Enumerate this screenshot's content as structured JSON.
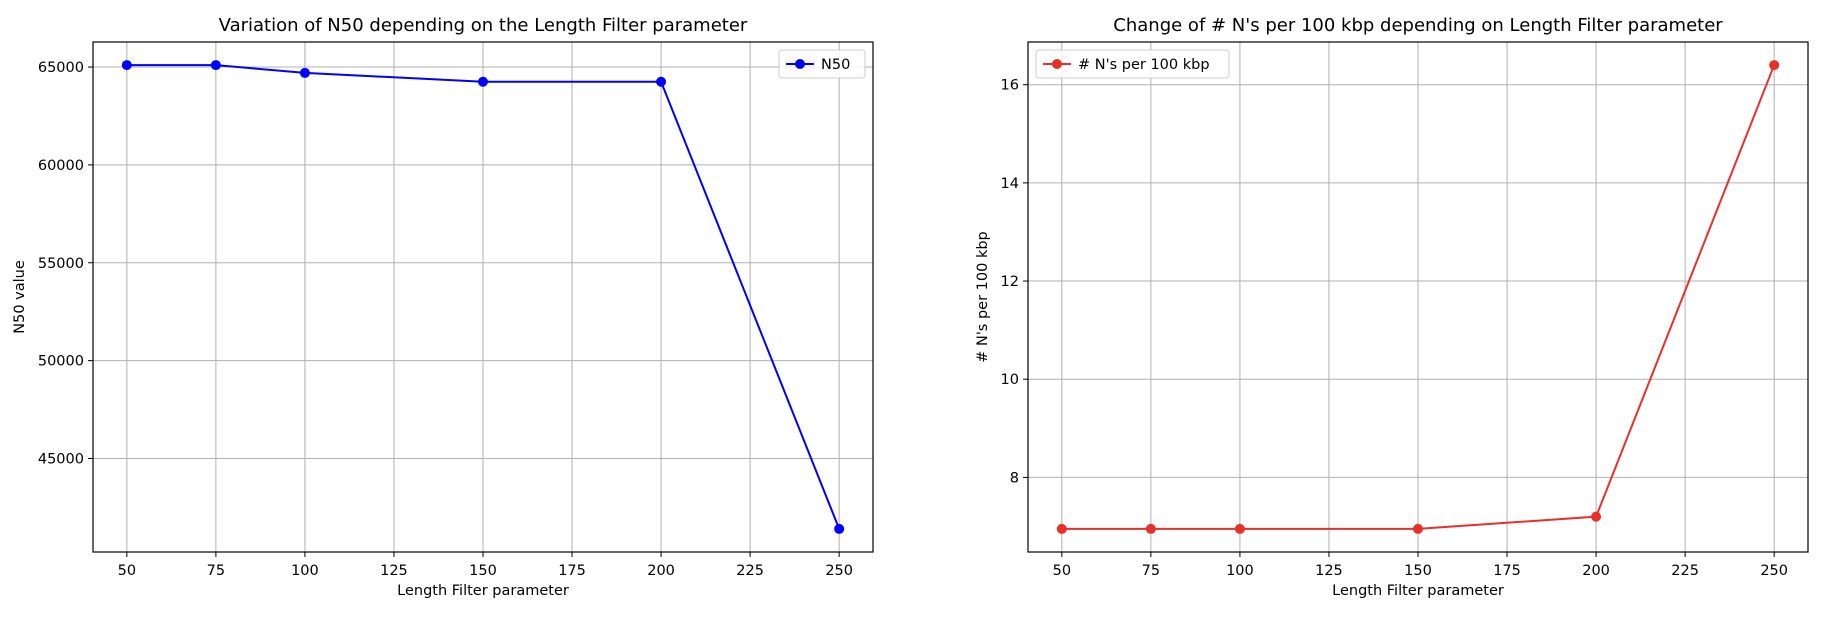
{
  "chart_data": [
    {
      "type": "line",
      "title": "Variation of N50 depending on the Length Filter parameter",
      "xlabel": "Length Filter parameter",
      "ylabel": "N50 value",
      "x": [
        50,
        75,
        100,
        150,
        200,
        250
      ],
      "series": [
        {
          "name": "N50",
          "color": "#0000ff",
          "marker": "circle",
          "values": [
            65100,
            65100,
            64700,
            64250,
            64250,
            41400
          ]
        }
      ],
      "xticks": [
        50,
        75,
        100,
        125,
        150,
        175,
        200,
        225,
        250
      ],
      "yticks": [
        45000,
        50000,
        55000,
        60000,
        65000
      ],
      "xlim": [
        40.5,
        259.5
      ],
      "ylim": [
        40220,
        66280
      ],
      "grid": true,
      "legend": "top-right"
    },
    {
      "type": "line",
      "title": "Change of # N's per 100 kbp depending on Length Filter parameter",
      "xlabel": "Length Filter parameter",
      "ylabel": "# N's per 100 kbp",
      "x": [
        50,
        75,
        100,
        150,
        200,
        250
      ],
      "series": [
        {
          "name": "# N's per 100 kbp",
          "color": "#e8302a",
          "marker": "circle",
          "values": [
            6.95,
            6.95,
            6.95,
            6.95,
            7.2,
            16.4
          ]
        }
      ],
      "xticks": [
        50,
        75,
        100,
        125,
        150,
        175,
        200,
        225,
        250
      ],
      "yticks": [
        8,
        10,
        12,
        14,
        16
      ],
      "xlim": [
        40.5,
        259.5
      ],
      "ylim": [
        6.48,
        16.87
      ],
      "grid": true,
      "legend": "top-left"
    }
  ]
}
